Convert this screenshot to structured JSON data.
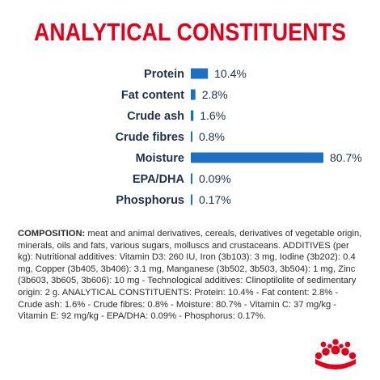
{
  "colors": {
    "title": "#e2001a",
    "bar": "#1d6fc4",
    "label": "#1f2f4a",
    "logo": "#e2001a"
  },
  "title": "ANALYTICAL CONSTITUENTS",
  "chart_data": {
    "type": "bar",
    "orientation": "horizontal",
    "categories": [
      "Protein",
      "Fat content",
      "Crude ash",
      "Crude fibres",
      "Moisture",
      "EPA/DHA",
      "Phosphorus"
    ],
    "values": [
      10.4,
      2.8,
      1.6,
      0.8,
      80.7,
      0.09,
      0.17
    ],
    "value_labels": [
      "10.4%",
      "2.8%",
      "1.6%",
      "0.8%",
      "80.7%",
      "0.09%",
      "0.17%"
    ],
    "unit": "%",
    "xlim": [
      0,
      80.7
    ],
    "grid": false,
    "legend": "none"
  },
  "composition": {
    "lead": "COMPOSITION:",
    "text": " meat and animal derivatives, cereals, derivatives of vegetable origin, minerals, oils and fats, various sugars, molluscs and crustaceans. ADDITIVES (per kg): Nutritional additives: Vitamin D3: 260 IU, Iron (3b103): 3 mg, Iodine (3b202): 0.4 mg, Copper (3b405, 3b406): 3.1 mg, Manganese (3b502, 3b503, 3b504): 1 mg, Zinc (3b603, 3b605, 3b606): 10 mg - Technological additives: Clinoptilolite of sedimentary origin: 2 g. ANALYTICAL CONSTITUENTS: Protein: 10.4% - Fat content: 2.8% - Crude ash: 1.6% - Crude fibres: 0.8% - Moisture: 80.7% - Vitamin C: 37 mg/kg - Vitamin E: 92 mg/kg - EPA/DHA: 0.09% - Phosphorus: 0.17%."
  },
  "logo": {
    "icon": "royal-canin-crown-logo"
  }
}
